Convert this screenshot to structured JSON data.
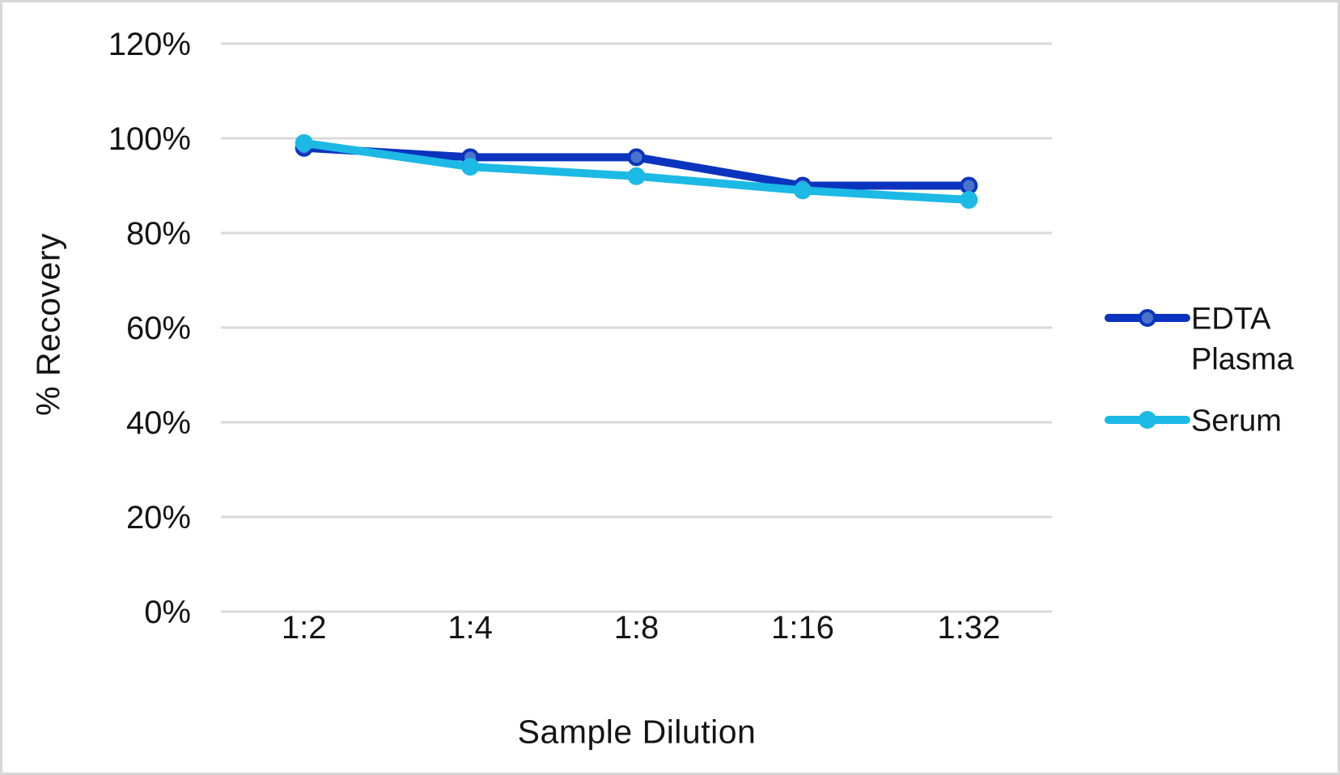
{
  "chart_data": {
    "type": "line",
    "title": "",
    "xlabel": "Sample Dilution",
    "ylabel": "% Recovery",
    "categories": [
      "1:2",
      "1:4",
      "1:8",
      "1:16",
      "1:32"
    ],
    "series": [
      {
        "name": "EDTA Plasma",
        "legend_lines": [
          "EDTA",
          "Plasma"
        ],
        "values": [
          98,
          96,
          96,
          90,
          90
        ],
        "color": "#0b34be",
        "marker": {
          "radius": 9,
          "fill": "#4a74ca",
          "stroke": "#0b34be",
          "stroke_width": 4
        }
      },
      {
        "name": "Serum",
        "legend_lines": [
          "Serum"
        ],
        "values": [
          99,
          94,
          92,
          89,
          87
        ],
        "color": "#1cb9e5",
        "marker": {
          "radius": 11,
          "fill": "#1cb9e5",
          "stroke": "#1cb9e5",
          "stroke_width": 0
        }
      }
    ],
    "ylim": [
      0,
      120
    ],
    "yticks": [
      {
        "value": 0,
        "label": "0%"
      },
      {
        "value": 20,
        "label": "20%"
      },
      {
        "value": 40,
        "label": "40%"
      },
      {
        "value": 60,
        "label": "60%"
      },
      {
        "value": 80,
        "label": "80%"
      },
      {
        "value": 100,
        "label": "100%"
      },
      {
        "value": 120,
        "label": "120%"
      }
    ],
    "grid": "horizontal",
    "gridline_step": 20,
    "legend_position": "right",
    "colors": {
      "text": "#141414",
      "gridline": "#d9d9d9",
      "background": "#ffffff",
      "frame_border": "#d7d7d7"
    }
  }
}
